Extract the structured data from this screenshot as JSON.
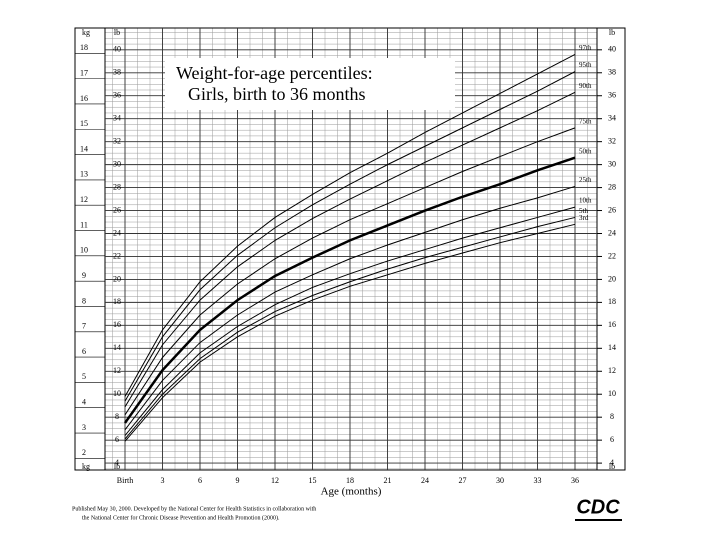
{
  "chart_data": {
    "type": "line",
    "title": "Weight-for-age percentiles:",
    "subtitle": "Girls, birth to 36 months",
    "x_label": "Age (months)",
    "y_unit": "lb",
    "y2_unit": "kg",
    "x": [
      0,
      3,
      6,
      9,
      12,
      15,
      18,
      21,
      24,
      27,
      30,
      33,
      36
    ],
    "xlim": [
      -1.6,
      37.76
    ],
    "xticks": [
      {
        "value": 0,
        "label": "Birth"
      },
      3,
      6,
      9,
      12,
      15,
      18,
      21,
      24,
      27,
      30,
      33,
      36
    ],
    "ylim": [
      3.4,
      41.9
    ],
    "yticks": [
      4,
      6,
      8,
      10,
      12,
      14,
      16,
      18,
      20,
      22,
      24,
      26,
      28,
      30,
      32,
      34,
      36,
      38,
      40
    ],
    "y2lim": [
      1.54,
      19.0
    ],
    "y2ticks": [
      2,
      3,
      4,
      5,
      6,
      7,
      8,
      9,
      10,
      11,
      12,
      13,
      14,
      15,
      16,
      17,
      18
    ],
    "grid": true,
    "series": [
      {
        "name": "97th",
        "color": "#000000",
        "width": 1,
        "values": [
          9.8,
          15.6,
          19.8,
          22.9,
          25.4,
          27.4,
          29.3,
          31.0,
          32.8,
          34.5,
          36.2,
          37.9,
          39.6
        ]
      },
      {
        "name": "95th",
        "color": "#000000",
        "width": 1,
        "values": [
          9.4,
          15.0,
          19.1,
          22.1,
          24.5,
          26.5,
          28.3,
          30.0,
          31.6,
          33.2,
          34.8,
          36.4,
          38.1
        ]
      },
      {
        "name": "90th",
        "color": "#000000",
        "width": 1,
        "values": [
          8.9,
          14.3,
          18.2,
          21.1,
          23.4,
          25.3,
          27.0,
          28.6,
          30.2,
          31.7,
          33.2,
          34.7,
          36.3
        ]
      },
      {
        "name": "75th",
        "color": "#000000",
        "width": 1,
        "values": [
          8.2,
          13.2,
          16.9,
          19.6,
          21.8,
          23.6,
          25.2,
          26.6,
          28.0,
          29.4,
          30.7,
          32.0,
          33.2
        ]
      },
      {
        "name": "50th",
        "color": "#000000",
        "width": 2.5,
        "values": [
          7.5,
          12.1,
          15.6,
          18.2,
          20.3,
          21.9,
          23.4,
          24.7,
          26.0,
          27.2,
          28.3,
          29.5,
          30.6
        ]
      },
      {
        "name": "25th",
        "color": "#000000",
        "width": 1,
        "values": [
          6.9,
          11.2,
          14.5,
          16.9,
          18.9,
          20.4,
          21.8,
          23.0,
          24.1,
          25.2,
          26.2,
          27.1,
          28.1
        ]
      },
      {
        "name": "10th",
        "color": "#000000",
        "width": 1,
        "values": [
          6.4,
          10.4,
          13.6,
          15.9,
          17.8,
          19.3,
          20.5,
          21.6,
          22.6,
          23.6,
          24.5,
          25.4,
          26.3
        ]
      },
      {
        "name": "5th",
        "color": "#000000",
        "width": 1,
        "values": [
          6.1,
          10.0,
          13.1,
          15.4,
          17.2,
          18.6,
          19.8,
          20.9,
          21.9,
          22.8,
          23.7,
          24.6,
          25.4
        ]
      },
      {
        "name": "3rd",
        "color": "#000000",
        "width": 1,
        "values": [
          5.9,
          9.7,
          12.8,
          15.0,
          16.8,
          18.2,
          19.4,
          20.4,
          21.4,
          22.3,
          23.2,
          24.0,
          24.8
        ]
      }
    ],
    "source": [
      "Published May 30, 2000. Developed by the National Center for Health Statistics in collaboration with",
      "the National Center for Chronic Disease Prevention and Health Promotion (2000)."
    ],
    "logo": "CDC"
  }
}
